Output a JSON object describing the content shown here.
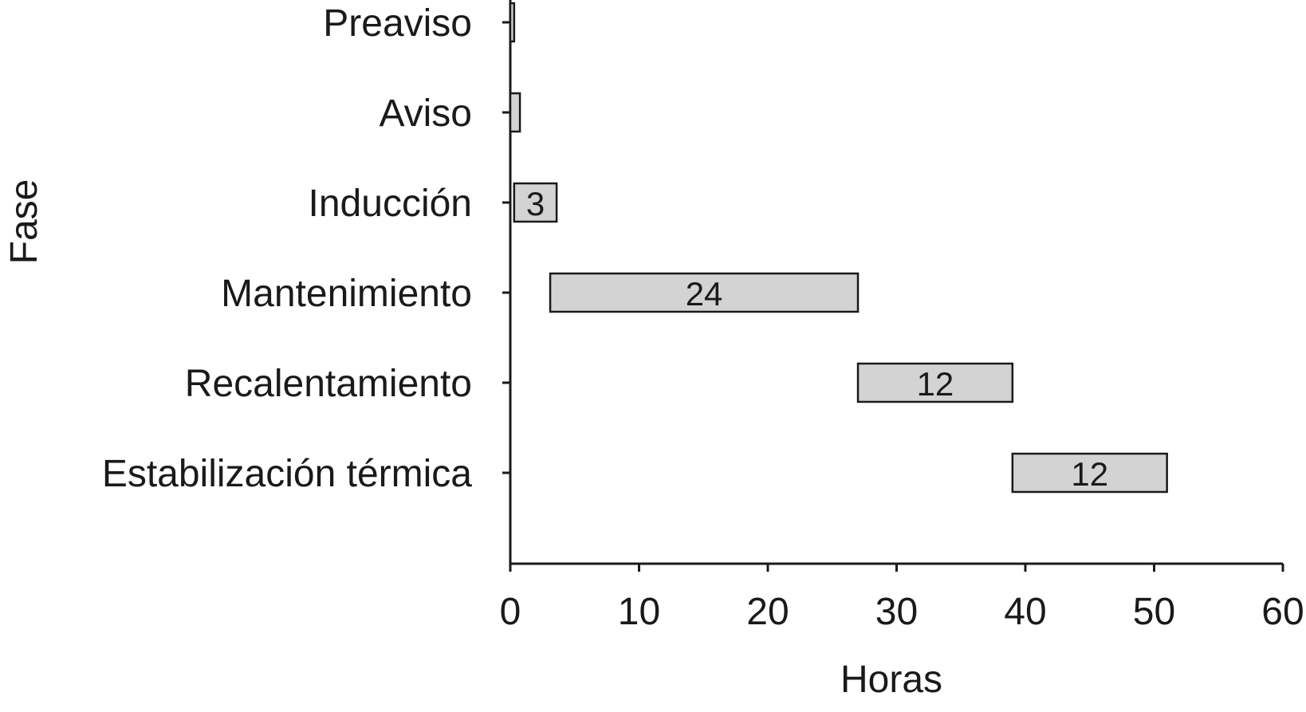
{
  "chart_data": {
    "type": "bar",
    "orientation": "horizontal",
    "style": "gantt",
    "categories": [
      "Preaviso",
      "Aviso",
      "Inducción",
      "Mantenimiento",
      "Recalentamiento",
      "Estabilización térmica"
    ],
    "bars": [
      {
        "start": 0,
        "end": 0.3,
        "label": ""
      },
      {
        "start": 0,
        "end": 0.75,
        "label": ""
      },
      {
        "start": 0.3,
        "end": 3.6,
        "label": "3"
      },
      {
        "start": 3.1,
        "end": 27,
        "label": "24"
      },
      {
        "start": 27,
        "end": 39,
        "label": "12"
      },
      {
        "start": 39,
        "end": 51,
        "label": "12"
      }
    ],
    "xlabel": "Horas",
    "ylabel": "Fase",
    "xlim": [
      0,
      60
    ],
    "xticks": [
      "0",
      "10",
      "20",
      "30",
      "40",
      "50",
      "60"
    ],
    "grid": false,
    "legend": "none",
    "colors": {
      "bar_fill": "#d3d3d3",
      "bar_stroke": "#1a1a1a",
      "axis": "#1a1a1a"
    }
  }
}
